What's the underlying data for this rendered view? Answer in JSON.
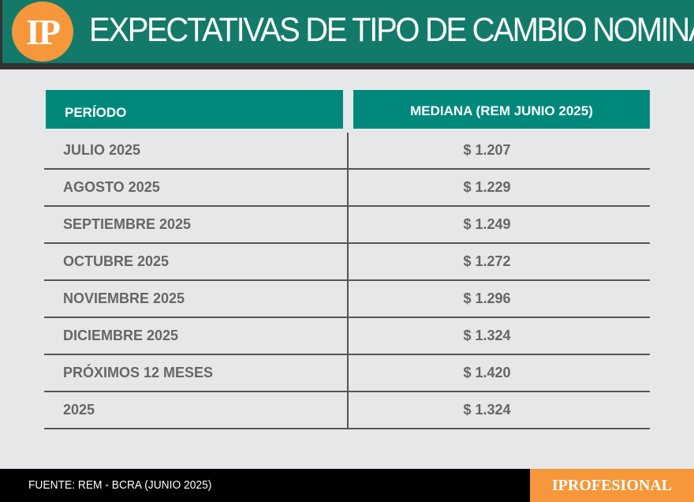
{
  "header": {
    "logo_text": "IP",
    "title": "EXPECTATIVAS DE TIPO DE CAMBIO NOMINAL",
    "header_color": "#137a6a",
    "logo_color": "#f5973a"
  },
  "chart_data": {
    "type": "table",
    "columns": [
      "PERÍODO",
      "MEDIANA (REM JUNIO 2025)"
    ],
    "rows": [
      [
        "JULIO 2025",
        "$ 1.207"
      ],
      [
        "AGOSTO 2025",
        "$ 1.229"
      ],
      [
        "SEPTIEMBRE 2025",
        "$ 1.249"
      ],
      [
        "OCTUBRE 2025",
        "$ 1.272"
      ],
      [
        "NOVIEMBRE 2025",
        "$ 1.296"
      ],
      [
        "DICIEMBRE 2025",
        "$ 1.324"
      ],
      [
        "PRÓXIMOS 12 MESES",
        "$ 1.420"
      ],
      [
        "2025",
        "$ 1.324"
      ]
    ],
    "header_color": "#00897b"
  },
  "footer": {
    "source": "FUENTE:  REM - BCRA (JUNIO 2025)",
    "brand": "IPROFESIONAL"
  }
}
